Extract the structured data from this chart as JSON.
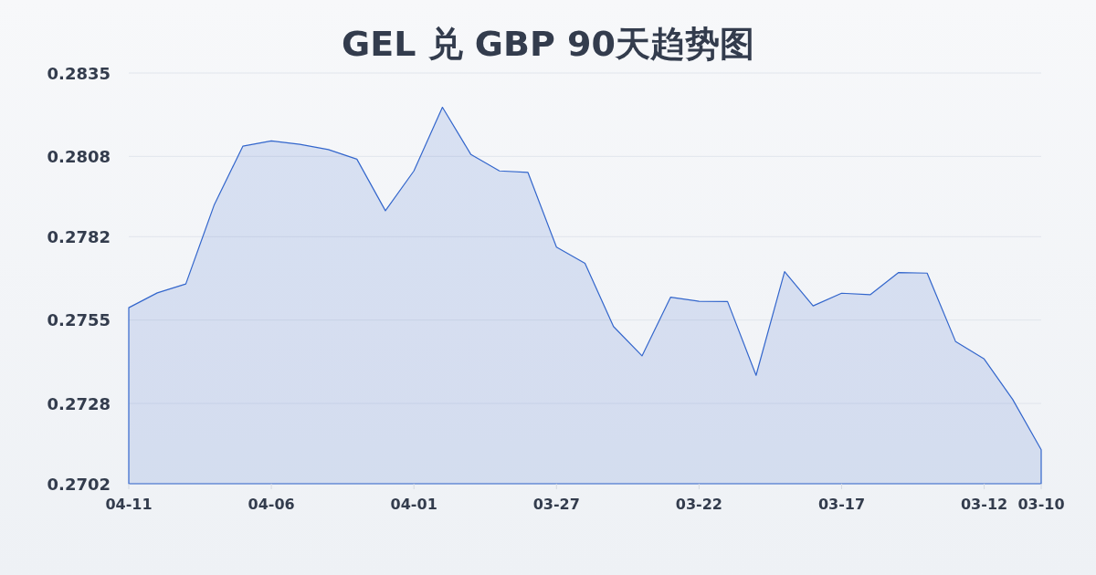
{
  "chart_data": {
    "type": "area",
    "title": "GEL 兑 GBP 90天趋势图",
    "categories": [
      "04-11",
      null,
      null,
      null,
      null,
      "04-06",
      null,
      null,
      null,
      null,
      "04-01",
      null,
      null,
      null,
      null,
      "03-27",
      null,
      null,
      null,
      null,
      "03-22",
      null,
      null,
      null,
      null,
      "03-17",
      null,
      null,
      null,
      null,
      "03-12",
      null,
      "03-10"
    ],
    "values": [
      0.2759,
      0.27638,
      0.27667,
      0.27924,
      0.28113,
      0.2813,
      0.28119,
      0.28102,
      0.28071,
      0.27904,
      0.28033,
      0.28239,
      0.28086,
      0.28033,
      0.28028,
      0.27786,
      0.27734,
      0.27529,
      0.27434,
      0.27624,
      0.27611,
      0.2761,
      0.27371,
      0.27707,
      0.27596,
      0.27637,
      0.27632,
      0.27704,
      0.27702,
      0.2748,
      0.27424,
      0.27293,
      0.2713
    ],
    "color": "#3366cc",
    "ylim": [
      0.2702,
      0.2835
    ],
    "yticks": [
      0.2702,
      0.2728,
      0.2755,
      0.2782,
      0.2808,
      0.2835
    ],
    "grid": "y"
  }
}
